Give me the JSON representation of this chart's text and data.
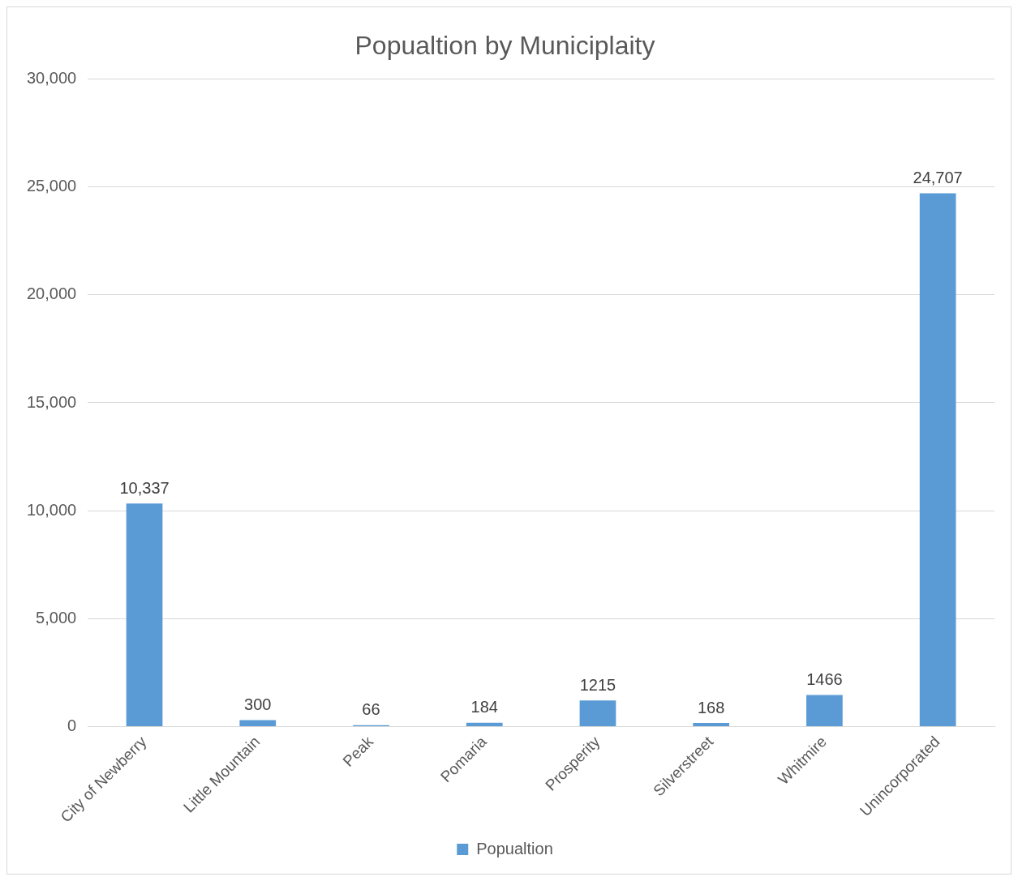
{
  "chart_data": {
    "type": "bar",
    "title": "Popualtion by Municiplaity",
    "categories": [
      "City of Newberry",
      "Little Mountain",
      "Peak",
      "Pomaria",
      "Prosperity",
      "Silverstreet",
      "Whitmire",
      "Unincorporated"
    ],
    "series": [
      {
        "name": "Popualtion",
        "color": "#5b9bd5",
        "values": [
          10337,
          300,
          66,
          184,
          1215,
          168,
          1466,
          24707
        ],
        "value_labels": [
          "10,337",
          "300",
          "66",
          "184",
          "1215",
          "168",
          "1466",
          "24,707"
        ]
      }
    ],
    "ylim": [
      0,
      30000
    ],
    "yticks": [
      0,
      {
        "value": 5000,
        "label": "5,000"
      },
      {
        "value": 10000,
        "label": "10,000"
      },
      {
        "value": 15000,
        "label": "15,000"
      },
      {
        "value": 20000,
        "label": "20,000"
      },
      {
        "value": 25000,
        "label": "25,000"
      },
      {
        "value": 30000,
        "label": "30,000"
      }
    ],
    "grid": "y",
    "legend": "bottom"
  }
}
